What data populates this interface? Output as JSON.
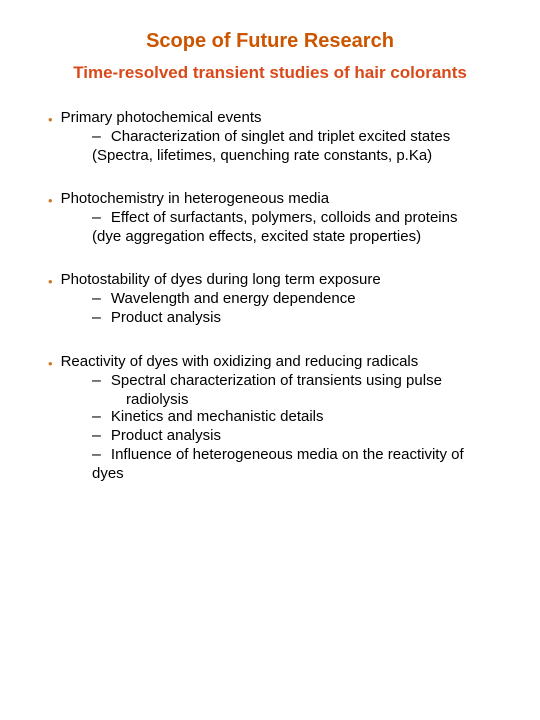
{
  "colors": {
    "title": "#cc5500",
    "subtitle": "#d94a1a",
    "bullet_dot": "#cc7a29",
    "body_text": "#000000",
    "background": "#ffffff"
  },
  "fonts": {
    "title_size": 20,
    "subtitle_size": 17,
    "body_size": 15,
    "bullet_dot_size": 13,
    "dash_size": 16,
    "family": "Comic Sans MS"
  },
  "title": "Scope of Future Research",
  "subtitle": "Time-resolved transient studies of hair colorants",
  "sections": [
    {
      "heading": "Primary photochemical events",
      "subs": [
        "Characterization of singlet and triplet excited states"
      ],
      "paren": "(Spectra, lifetimes, quenching rate constants, p.Ka)"
    },
    {
      "heading": "Photochemistry in heterogeneous media",
      "subs": [
        "Effect of surfactants, polymers, colloids and proteins"
      ],
      "paren": "(dye aggregation effects, excited state properties)"
    },
    {
      "heading": "Photostability of dyes during long term exposure",
      "subs": [
        "Wavelength and energy dependence",
        "Product analysis"
      ],
      "paren": null
    },
    {
      "heading": "Reactivity of dyes with oxidizing and reducing radicals",
      "subs": [
        "Spectral characterization of transients using pulse",
        "Kinetics and mechanistic details",
        "Product analysis",
        "Influence of heterogeneous media on the reactivity of"
      ],
      "sub_continue_0": "radiolysis",
      "sub_continue_3": "dyes",
      "paren": null
    }
  ]
}
